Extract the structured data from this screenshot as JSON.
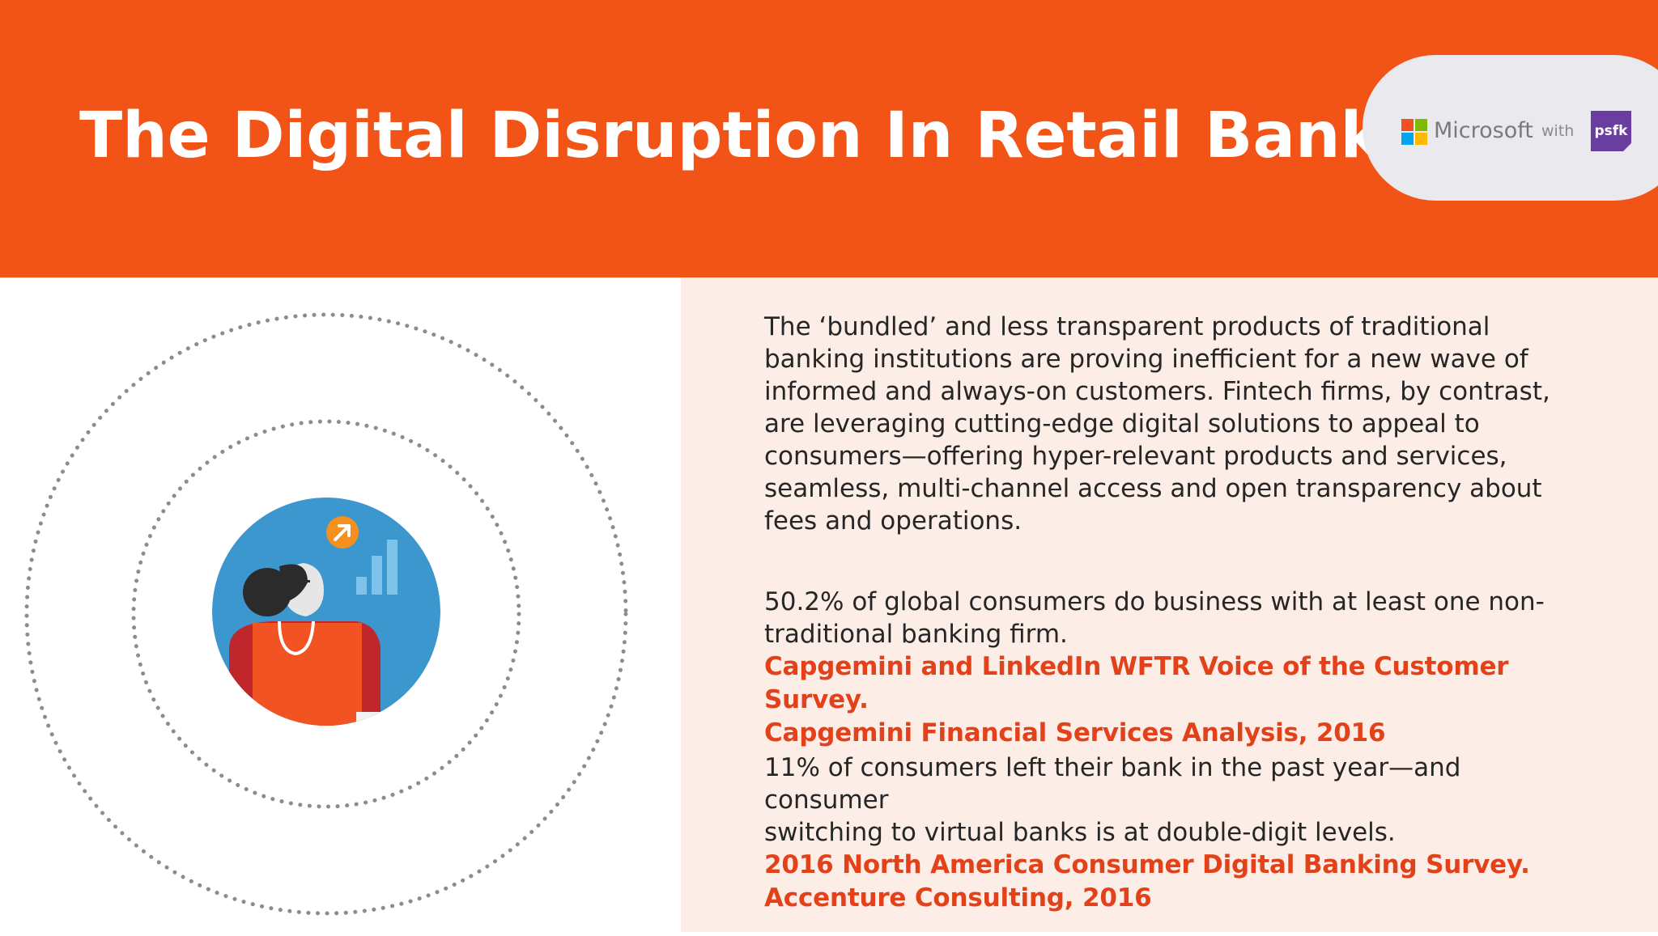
{
  "header": {
    "title": "The Digital Disruption In Retail Banking",
    "background_color": "#f25316"
  },
  "logos": {
    "microsoft": "Microsoft",
    "with": "with",
    "psfk": "psfk",
    "microsoft_colors": [
      "#f25022",
      "#7fba00",
      "#00a4ef",
      "#ffb900"
    ],
    "psfk_color": "#6a3ea1"
  },
  "illustration": {
    "icon": "person-with-growth-chart-icon",
    "arrow_icon": "arrow-up-right-icon",
    "chart_icon": "bar-chart-icon"
  },
  "body": {
    "intro": "The ‘bundled’ and less transparent products of traditional\nbanking institutions are proving inefficient for a new wave of\ninformed and always-on customers. Fintech firms, by contrast,\nare leveraging cutting-edge digital solutions to appeal to\nconsumers—offering hyper-relevant products and services,\nseamless, multi-channel access and open transparency about\nfees and operations.",
    "stat1": "50.2% of global consumers do business with at least one non-\ntraditional banking firm.",
    "stat1_source": "Capgemini and LinkedIn WFTR Voice of the Customer Survey.\nCapgemini Financial Services Analysis, 2016",
    "stat2": "11% of consumers left their bank in the past year—and consumer\nswitching to virtual banks is at double-digit levels.",
    "stat2_source": "2016 North America Consumer Digital Banking Survey.\nAccenture Consulting, 2016",
    "source_color": "#e2411a",
    "panel_color": "#fcede6"
  }
}
